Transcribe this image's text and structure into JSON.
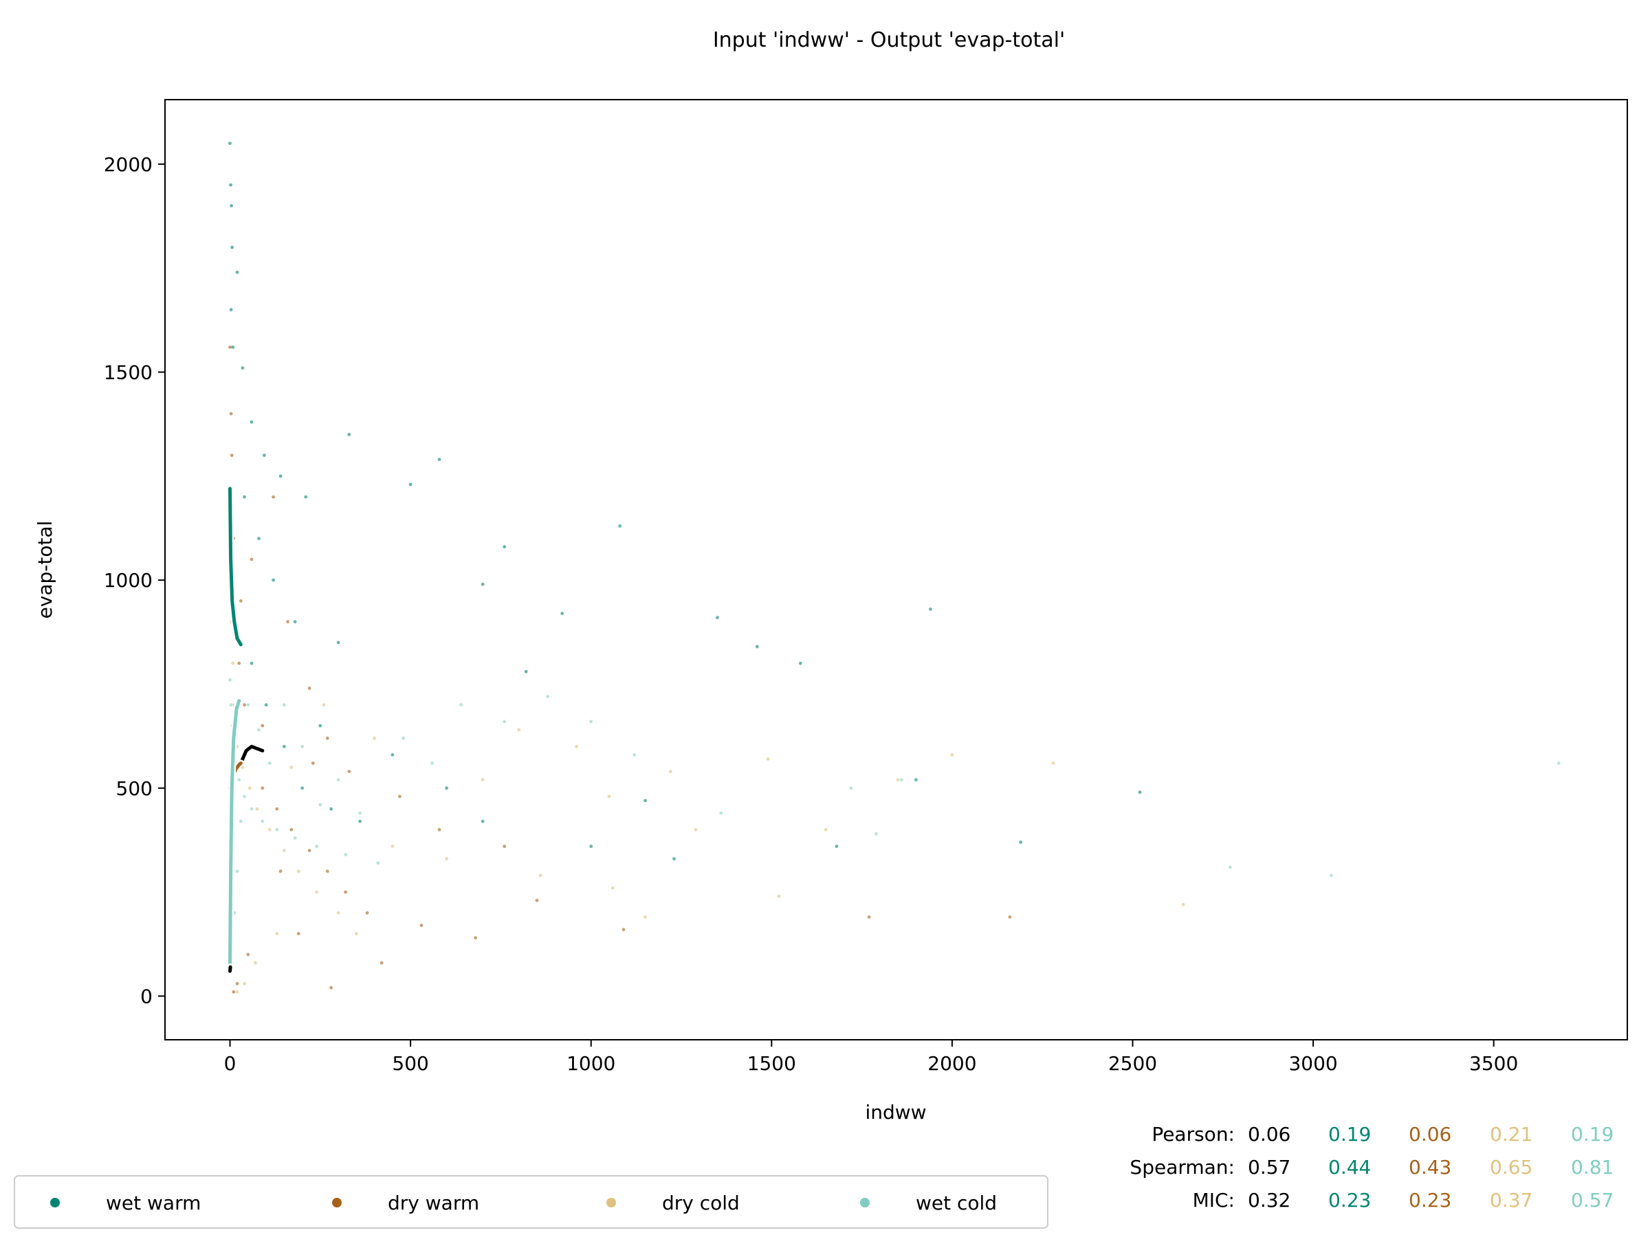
{
  "chart_data": {
    "type": "scatter",
    "title": "Input 'indww' - Output 'evap-total'",
    "xlabel": "indww",
    "ylabel": "evap-total",
    "xlim": [
      -180,
      3870
    ],
    "ylim": [
      -105,
      2155
    ],
    "xticks": [
      0,
      500,
      1000,
      1500,
      2000,
      2500,
      3000,
      3500
    ],
    "yticks": [
      0,
      500,
      1000,
      1500,
      2000
    ],
    "grid": false,
    "legend_position": "bottom-left",
    "series": [
      {
        "name": "wet warm",
        "color": "#018571",
        "points": [
          [
            0,
            2050
          ],
          [
            2,
            1950
          ],
          [
            4,
            1900
          ],
          [
            6,
            1800
          ],
          [
            3,
            1650
          ],
          [
            8,
            1560
          ],
          [
            20,
            1740
          ],
          [
            35,
            1510
          ],
          [
            60,
            1380
          ],
          [
            95,
            1300
          ],
          [
            140,
            1250
          ],
          [
            210,
            1200
          ],
          [
            330,
            1350
          ],
          [
            500,
            1230
          ],
          [
            580,
            1290
          ],
          [
            760,
            1080
          ],
          [
            700,
            990
          ],
          [
            920,
            920
          ],
          [
            1350,
            910
          ],
          [
            1080,
            1130
          ],
          [
            1580,
            800
          ],
          [
            1940,
            930
          ],
          [
            1460,
            840
          ],
          [
            1900,
            520
          ],
          [
            2520,
            490
          ],
          [
            2190,
            370
          ],
          [
            1150,
            470
          ],
          [
            1230,
            330
          ],
          [
            820,
            780
          ],
          [
            450,
            580
          ],
          [
            600,
            500
          ],
          [
            360,
            420
          ],
          [
            250,
            650
          ],
          [
            300,
            850
          ],
          [
            180,
            900
          ],
          [
            120,
            1000
          ],
          [
            80,
            1100
          ],
          [
            40,
            1200
          ],
          [
            60,
            800
          ],
          [
            100,
            700
          ],
          [
            150,
            600
          ],
          [
            200,
            500
          ],
          [
            280,
            450
          ],
          [
            700,
            420
          ],
          [
            1000,
            360
          ],
          [
            1680,
            360
          ]
        ]
      },
      {
        "name": "dry warm",
        "color": "#a6611a",
        "points": [
          [
            0,
            1560
          ],
          [
            3,
            1400
          ],
          [
            5,
            1300
          ],
          [
            10,
            1100
          ],
          [
            15,
            900
          ],
          [
            25,
            800
          ],
          [
            40,
            700
          ],
          [
            60,
            600
          ],
          [
            90,
            500
          ],
          [
            130,
            450
          ],
          [
            170,
            400
          ],
          [
            220,
            350
          ],
          [
            270,
            300
          ],
          [
            320,
            250
          ],
          [
            380,
            200
          ],
          [
            330,
            540
          ],
          [
            270,
            620
          ],
          [
            220,
            740
          ],
          [
            160,
            900
          ],
          [
            420,
            80
          ],
          [
            280,
            20
          ],
          [
            680,
            140
          ],
          [
            850,
            230
          ],
          [
            1090,
            160
          ],
          [
            1770,
            190
          ],
          [
            2160,
            190
          ],
          [
            580,
            400
          ],
          [
            760,
            360
          ],
          [
            470,
            480
          ],
          [
            530,
            170
          ],
          [
            230,
            560
          ],
          [
            120,
            1200
          ],
          [
            60,
            1050
          ],
          [
            30,
            950
          ],
          [
            90,
            650
          ],
          [
            140,
            300
          ],
          [
            190,
            150
          ],
          [
            10,
            10
          ],
          [
            20,
            30
          ],
          [
            50,
            100
          ]
        ]
      },
      {
        "name": "dry cold",
        "color": "#dfc27d",
        "points": [
          [
            0,
            1100
          ],
          [
            4,
            900
          ],
          [
            8,
            800
          ],
          [
            12,
            700
          ],
          [
            20,
            600
          ],
          [
            35,
            550
          ],
          [
            55,
            500
          ],
          [
            75,
            450
          ],
          [
            110,
            400
          ],
          [
            150,
            350
          ],
          [
            190,
            300
          ],
          [
            240,
            250
          ],
          [
            300,
            200
          ],
          [
            350,
            150
          ],
          [
            1060,
            260
          ],
          [
            860,
            290
          ],
          [
            1290,
            400
          ],
          [
            1850,
            520
          ],
          [
            2000,
            580
          ],
          [
            1490,
            570
          ],
          [
            1050,
            480
          ],
          [
            600,
            330
          ],
          [
            450,
            360
          ],
          [
            700,
            520
          ],
          [
            1150,
            190
          ],
          [
            1520,
            240
          ],
          [
            2640,
            220
          ],
          [
            2280,
            560
          ],
          [
            1650,
            400
          ],
          [
            960,
            600
          ],
          [
            1220,
            540
          ],
          [
            800,
            640
          ],
          [
            400,
            620
          ],
          [
            260,
            700
          ],
          [
            170,
            550
          ],
          [
            130,
            150
          ],
          [
            70,
            80
          ],
          [
            40,
            30
          ],
          [
            20,
            10
          ]
        ]
      },
      {
        "name": "wet cold",
        "color": "#80cdc1",
        "points": [
          [
            0,
            760
          ],
          [
            3,
            700
          ],
          [
            6,
            650
          ],
          [
            10,
            600
          ],
          [
            15,
            560
          ],
          [
            25,
            520
          ],
          [
            40,
            480
          ],
          [
            60,
            450
          ],
          [
            90,
            420
          ],
          [
            130,
            400
          ],
          [
            180,
            380
          ],
          [
            240,
            360
          ],
          [
            320,
            340
          ],
          [
            410,
            320
          ],
          [
            3680,
            560
          ],
          [
            2770,
            310
          ],
          [
            3050,
            290
          ],
          [
            1790,
            390
          ],
          [
            1860,
            520
          ],
          [
            1720,
            500
          ],
          [
            1360,
            440
          ],
          [
            1120,
            580
          ],
          [
            1000,
            660
          ],
          [
            880,
            720
          ],
          [
            760,
            660
          ],
          [
            640,
            700
          ],
          [
            560,
            560
          ],
          [
            480,
            620
          ],
          [
            360,
            440
          ],
          [
            300,
            520
          ],
          [
            250,
            460
          ],
          [
            200,
            600
          ],
          [
            150,
            700
          ],
          [
            110,
            560
          ],
          [
            80,
            640
          ],
          [
            50,
            700
          ],
          [
            30,
            420
          ],
          [
            20,
            300
          ],
          [
            12,
            200
          ],
          [
            6,
            80
          ]
        ]
      }
    ],
    "trend_lines": [
      {
        "color": "#018571",
        "points": [
          [
            0,
            1220
          ],
          [
            2,
            1050
          ],
          [
            6,
            950
          ],
          [
            12,
            900
          ],
          [
            20,
            860
          ],
          [
            30,
            845
          ]
        ]
      },
      {
        "color": "#000000",
        "points": [
          [
            30,
            560
          ],
          [
            45,
            590
          ],
          [
            60,
            600
          ],
          [
            75,
            595
          ],
          [
            90,
            590
          ]
        ]
      },
      {
        "color": "#a6611a",
        "points": [
          [
            0,
            500
          ],
          [
            8,
            530
          ],
          [
            16,
            545
          ],
          [
            24,
            555
          ],
          [
            30,
            560
          ]
        ]
      },
      {
        "color": "#80cdc1",
        "points": [
          [
            0,
            70
          ],
          [
            2,
            300
          ],
          [
            5,
            500
          ],
          [
            10,
            620
          ],
          [
            18,
            690
          ],
          [
            25,
            710
          ]
        ]
      },
      {
        "color": "#000000",
        "points": [
          [
            0,
            60
          ],
          [
            1,
            70
          ]
        ]
      }
    ],
    "stats": {
      "labels": [
        "Pearson:",
        "Spearman:",
        "MIC:"
      ],
      "colors": [
        "#000000",
        "#018571",
        "#a6611a",
        "#dfc27d",
        "#80cdc1"
      ],
      "values": [
        [
          "0.06",
          "0.19",
          "0.06",
          "0.21",
          "0.19"
        ],
        [
          "0.57",
          "0.44",
          "0.43",
          "0.65",
          "0.81"
        ],
        [
          "0.32",
          "0.23",
          "0.23",
          "0.37",
          "0.57"
        ]
      ]
    }
  }
}
